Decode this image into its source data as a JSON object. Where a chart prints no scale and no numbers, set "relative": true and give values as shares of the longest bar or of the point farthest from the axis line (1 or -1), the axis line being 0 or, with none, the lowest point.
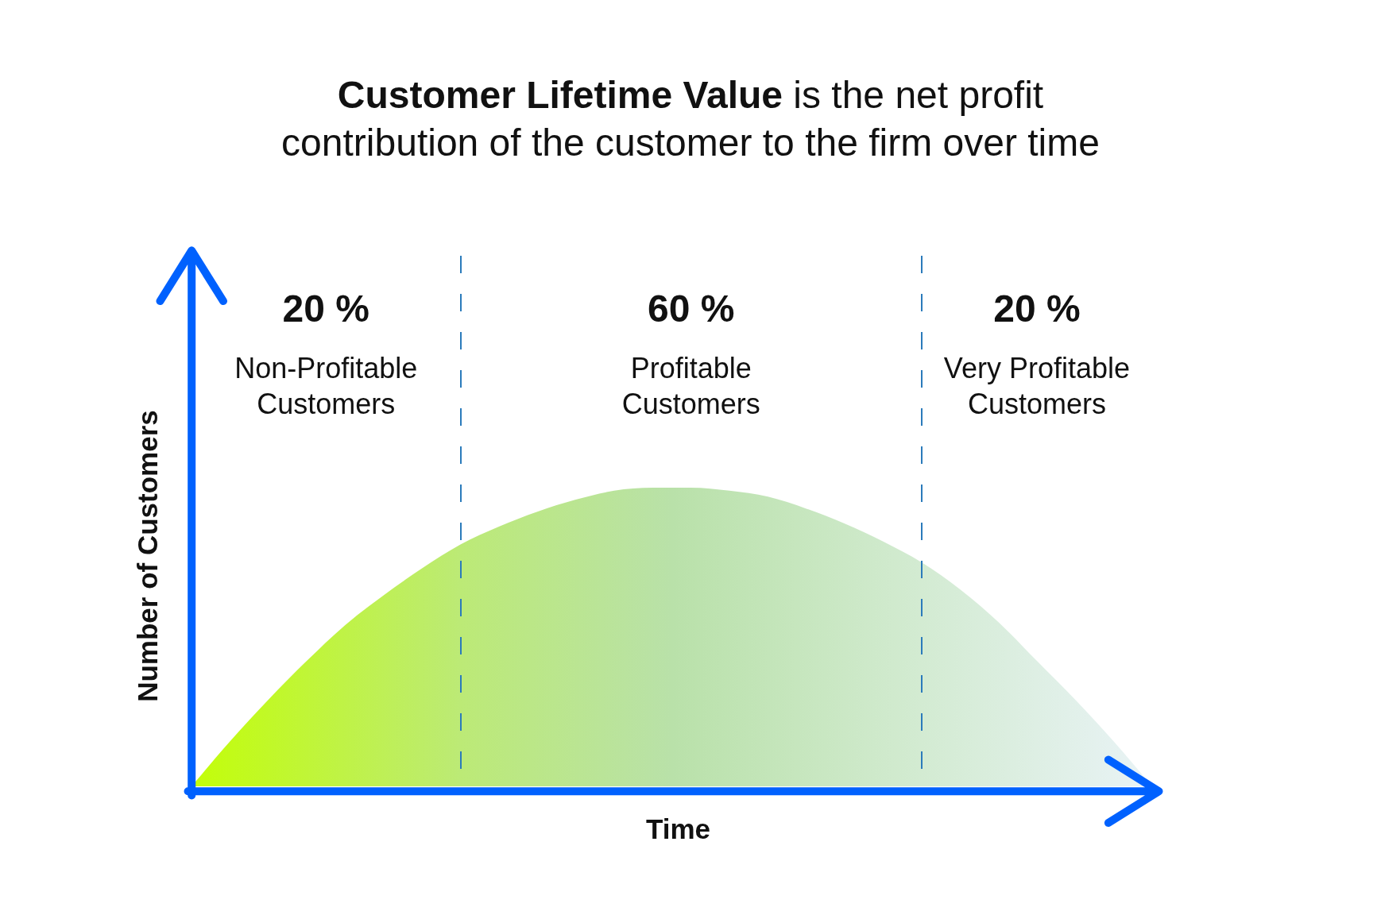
{
  "chart_data": {
    "type": "area",
    "title": "Customer Lifetime Value is the net profit contribution of the customer to the firm over time",
    "xlabel": "Time",
    "ylabel": "Number of Customers",
    "categories": [
      null,
      null,
      null,
      null,
      null,
      null,
      null,
      null,
      null,
      null,
      null,
      null,
      null,
      null,
      null,
      null,
      null,
      null,
      null,
      null,
      null,
      null,
      null,
      null,
      null,
      null
    ],
    "values": [
      0,
      0.15,
      0.29,
      0.42,
      0.54,
      0.64,
      0.73,
      0.81,
      0.87,
      0.92,
      0.96,
      0.99,
      1,
      1,
      0.99,
      0.97,
      0.93,
      0.88,
      0.82,
      0.75,
      0.66,
      0.55,
      0.42,
      0.29,
      0.15,
      0
    ],
    "color": "#b9e1a9",
    "relative": true,
    "tick_labels": false,
    "annotations": [
      "20 %",
      "Non-Profitable Customers",
      "60 %",
      "Profitable Customers",
      "20 %",
      "Very Profitable Customers"
    ]
  }
}
